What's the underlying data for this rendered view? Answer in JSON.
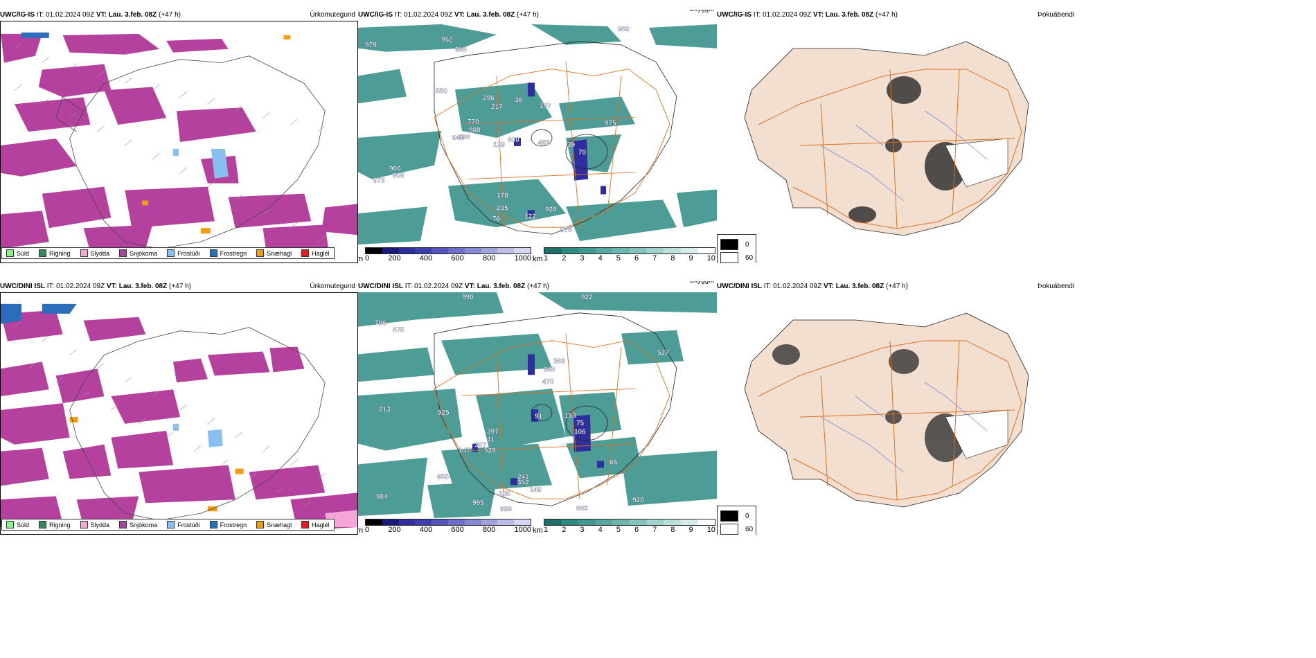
{
  "rows": [
    {
      "model": "UWC/IG-IS",
      "it_label": "IT: 01.02.2024 09Z",
      "vt_label": "VT:",
      "vt_value": "Lau. 3.feb. 08Z",
      "lead": "(+47 h)",
      "panels": {
        "precip": {
          "field": "Úrkomutegund"
        },
        "cloud": {
          "field": "Skyggni",
          "labels": [
            "989",
            "979",
            "952",
            "958",
            "550",
            "296",
            "217",
            "36",
            "197",
            "770",
            "988",
            "975",
            "948",
            "998",
            "129",
            "600",
            "481",
            "39",
            "70",
            "973",
            "909",
            "900",
            "178",
            "235",
            "928",
            "76",
            "122",
            "978"
          ]
        },
        "fog": {
          "field": "Þokuábendi"
        }
      }
    },
    {
      "model": "UWC/DINI ISL",
      "it_label": "IT: 01.02.2024 09Z",
      "vt_label": "VT:",
      "vt_value": "Lau. 3.feb. 08Z",
      "lead": "(+47 h)",
      "panels": {
        "precip": {
          "field": "Úrkomutegund"
        },
        "cloud": {
          "field": "Skyggni",
          "labels": [
            "990",
            "922",
            "706",
            "875",
            "363",
            "348",
            "470",
            "527",
            "213",
            "925",
            "91",
            "153",
            "75",
            "106",
            "397",
            "41",
            "307",
            "529",
            "147",
            "65",
            "955",
            "352",
            "241",
            "105",
            "149",
            "984",
            "995",
            "999",
            "883",
            "920"
          ]
        },
        "fog": {
          "field": "Þokuábendi"
        }
      }
    }
  ],
  "precip_legend": [
    {
      "label": "Súld",
      "color": "#90ee90"
    },
    {
      "label": "Rigning",
      "color": "#2e8b57"
    },
    {
      "label": "Slydda",
      "color": "#f4a6d7"
    },
    {
      "label": "Snjókoma",
      "color": "#b5419e"
    },
    {
      "label": "Frostúði",
      "color": "#87bfee"
    },
    {
      "label": "Frostregn",
      "color": "#2a6ebb"
    },
    {
      "label": "Snæhagl",
      "color": "#f39c12"
    },
    {
      "label": "Haglél",
      "color": "#e02020"
    }
  ],
  "height_bar": {
    "unit": "m",
    "ticks": [
      "0",
      "200",
      "400",
      "600",
      "800",
      "1000"
    ]
  },
  "vis_bar": {
    "unit": "km",
    "ticks": [
      "1",
      "2",
      "3",
      "4",
      "5",
      "6",
      "7",
      "8",
      "9",
      "10"
    ]
  },
  "fog_legend": [
    {
      "label": "0"
    },
    {
      "label": "60"
    }
  ],
  "colors": {
    "snow": "#b5419e",
    "teal": "#2e8b83",
    "lowcloud": "#2e2e9e",
    "road": "#e07020",
    "fogland": "#f2dfd0",
    "river": "#6f8fe8"
  }
}
